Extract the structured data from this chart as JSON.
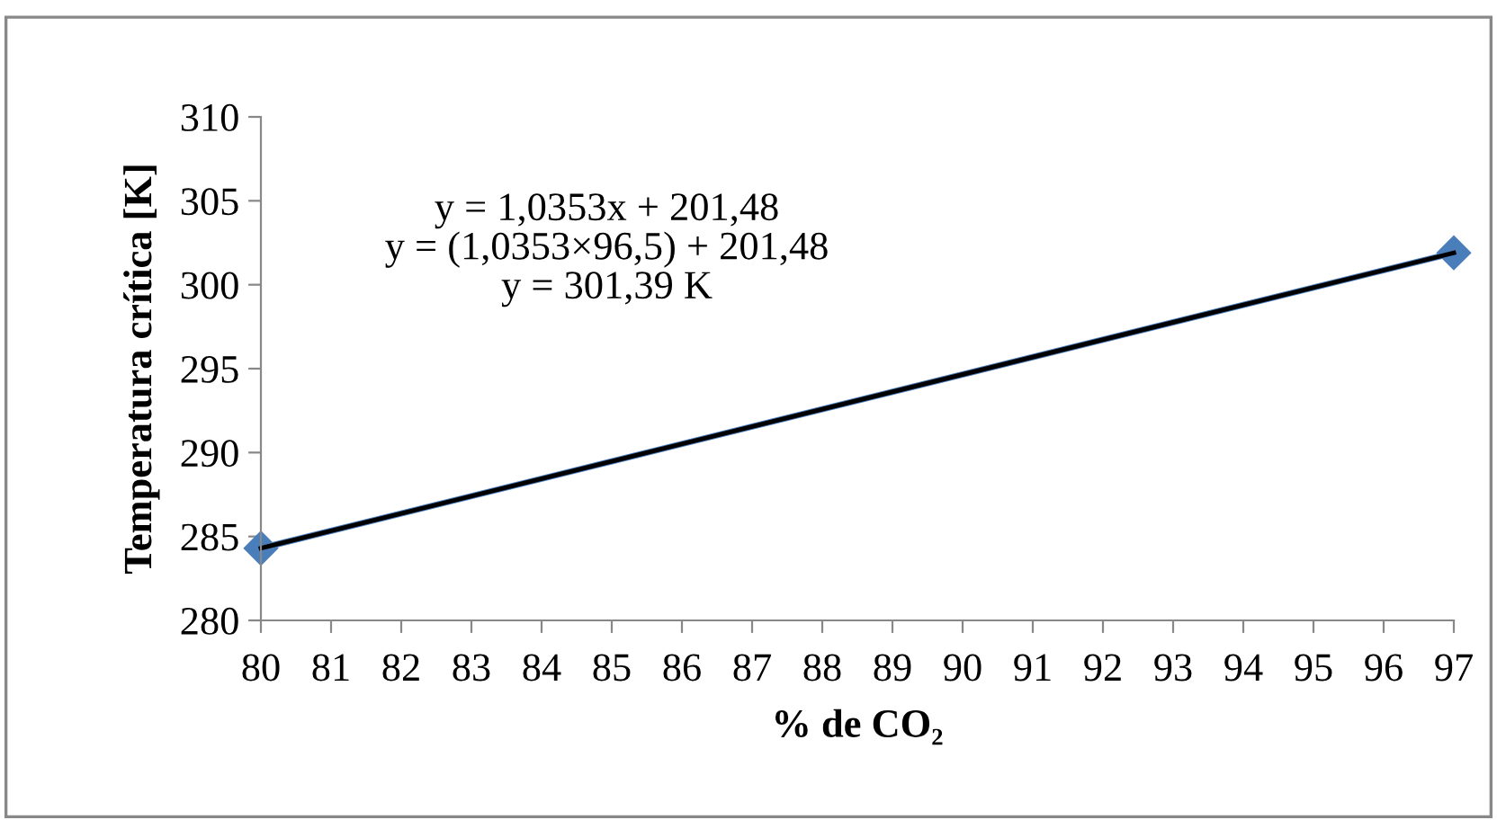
{
  "chart_data": {
    "type": "line",
    "xlabel": "% de CO₂",
    "ylabel": "Temperatura crítica [K]",
    "x": [
      80,
      97
    ],
    "series": [
      {
        "color": "#4a7ebb",
        "values": [
          284.3,
          301.9
        ],
        "marker": "diamond"
      },
      {
        "type": "line",
        "color": "#000000",
        "x": [
          80,
          97
        ],
        "values": [
          284.3,
          301.9
        ],
        "marker": "none"
      }
    ],
    "annotations": [
      "y = 1,0353x + 201,48\ny = (1,0353×96,5) + 201,48\ny = 301,39 K"
    ],
    "xlim": [
      80,
      97
    ],
    "xticks": [
      80,
      81,
      82,
      83,
      84,
      85,
      86,
      87,
      88,
      89,
      90,
      91,
      92,
      93,
      94,
      95,
      96,
      97
    ],
    "ylim": [
      280,
      310
    ],
    "yticks": [
      280,
      285,
      290,
      295,
      300,
      305,
      310
    ],
    "grid": false,
    "legend": false
  }
}
